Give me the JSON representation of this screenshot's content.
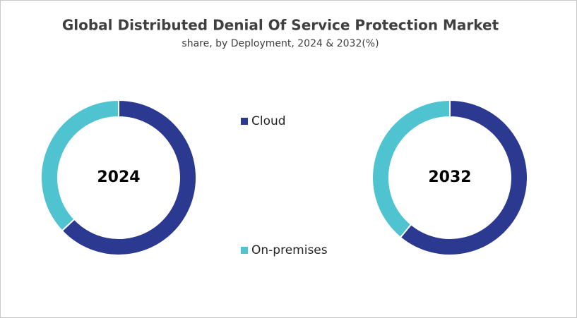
{
  "title": "Global Distributed Denial Of Service Protection Market",
  "subtitle": "share, by Deployment, 2024 & 2032(%)",
  "chart_data": [
    {
      "type": "donut",
      "label": "2024",
      "categories": [
        "Cloud",
        "On-premises"
      ],
      "values": [
        63,
        37
      ],
      "colors": [
        "#2b3990",
        "#4fc4d0"
      ]
    },
    {
      "type": "donut",
      "label": "2032",
      "categories": [
        "Cloud",
        "On-premises"
      ],
      "values": [
        61,
        39
      ],
      "colors": [
        "#2b3990",
        "#4fc4d0"
      ]
    }
  ]
}
